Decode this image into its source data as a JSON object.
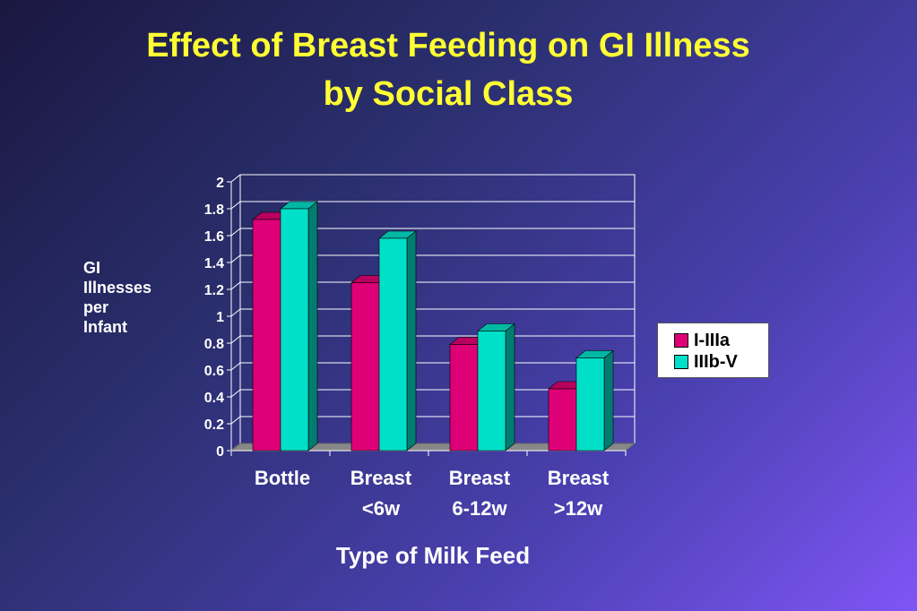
{
  "title_line1": "Effect of Breast Feeding on GI Illness",
  "title_line2": "by Social Class",
  "ylabel_lines": [
    "GI",
    "Illnesses",
    "per",
    "Infant"
  ],
  "xlabel": "Type of Milk Feed",
  "colors": {
    "series1": "#dd0077",
    "series1_top": "#b8005f",
    "series1_side": "#8a0048",
    "series2": "#00e0c8",
    "series2_top": "#00b8a4",
    "series2_side": "#007d70"
  },
  "chart_data": {
    "type": "bar",
    "categories": [
      [
        "Bottle"
      ],
      [
        "Breast",
        "<6w"
      ],
      [
        "Breast",
        "6-12w"
      ],
      [
        "Breast",
        ">12w"
      ]
    ],
    "series": [
      {
        "name": "I-IIIa",
        "values": [
          1.72,
          1.25,
          0.79,
          0.46
        ]
      },
      {
        "name": "IIIb-V",
        "values": [
          1.8,
          1.58,
          0.89,
          0.69
        ]
      }
    ],
    "title": "Effect of Breast Feeding on GI Illness by Social Class",
    "xlabel": "Type of Milk Feed",
    "ylabel": "GI Illnesses per Infant",
    "ylim": [
      0,
      2
    ],
    "yticks": [
      "0",
      "0.2",
      "0.4",
      "0.6",
      "0.8",
      "1",
      "1.2",
      "1.4",
      "1.6",
      "1.8",
      "2"
    ],
    "grid": true,
    "legend_position": "right"
  }
}
